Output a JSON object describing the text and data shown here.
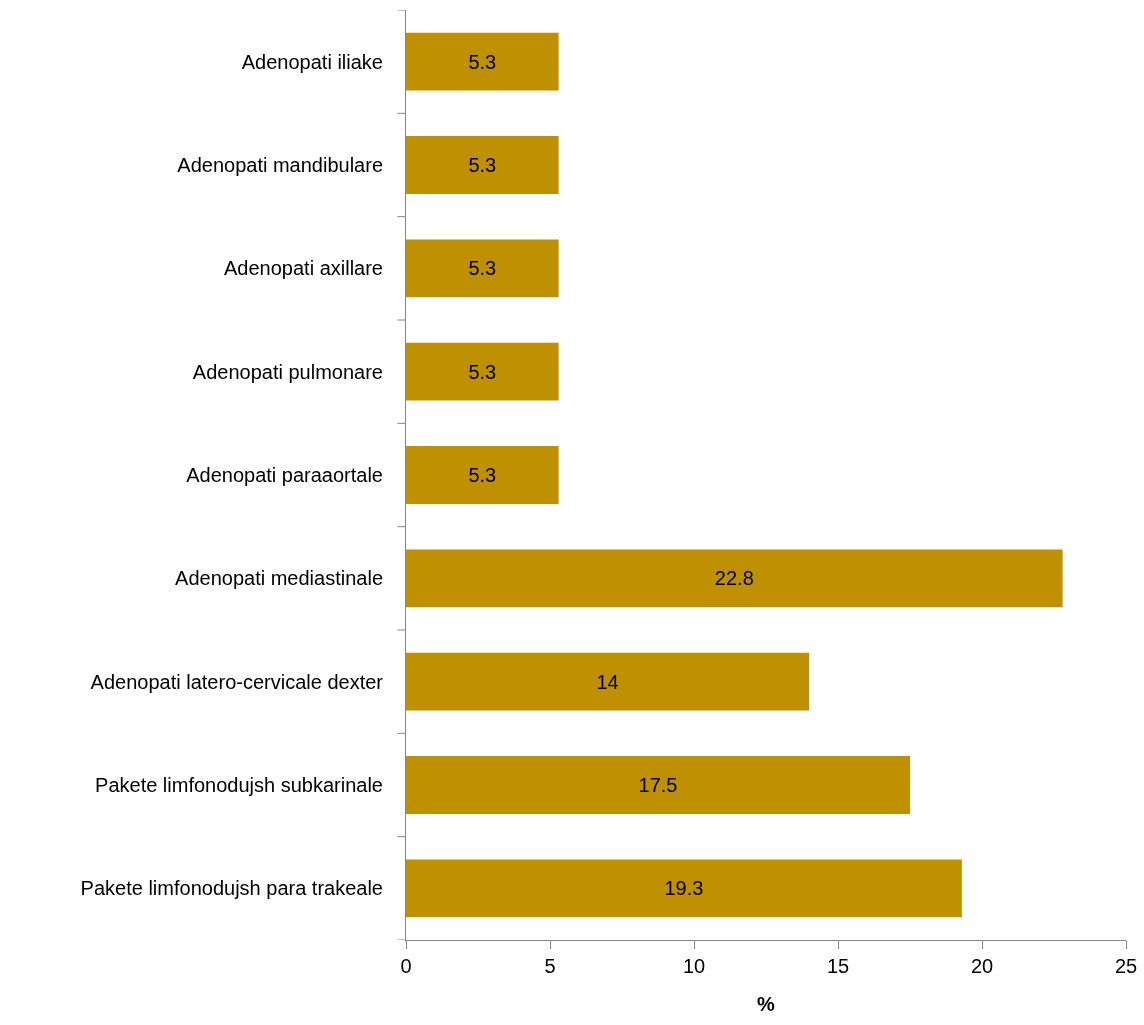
{
  "chart_data": {
    "type": "bar",
    "orientation": "horizontal",
    "xlabel": "%",
    "categories": [
      "Adenopati iliake",
      "Adenopati mandibulare",
      "Adenopati axillare",
      "Adenopati pulmonare",
      "Adenopati paraaortale",
      "Adenopati mediastinale",
      "Adenopati latero-cervicale dexter",
      "Pakete limfonodujsh subkarinale",
      "Pakete limfonodujsh para trakeale"
    ],
    "values": [
      5.3,
      5.3,
      5.3,
      5.3,
      5.3,
      22.8,
      14,
      17.5,
      19.3
    ],
    "color": "#bf9000",
    "data_labels": true,
    "xlim": [
      0,
      25
    ],
    "xticks": [
      0,
      5,
      10,
      15,
      20,
      25
    ],
    "grid": false
  }
}
